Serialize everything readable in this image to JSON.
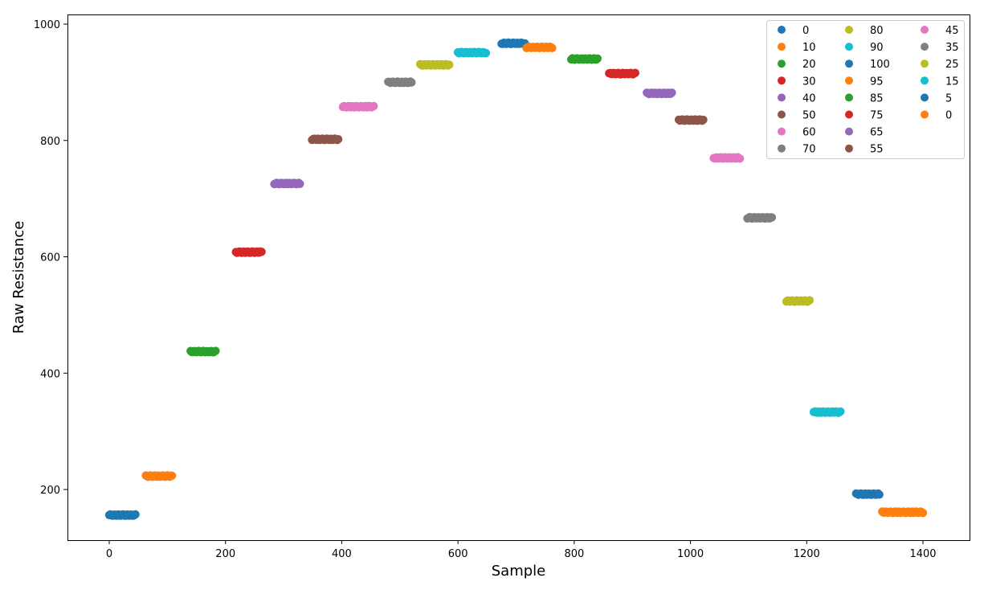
{
  "chart_data": {
    "type": "scatter",
    "title": "",
    "xlabel": "Sample",
    "ylabel": "Raw Resistance",
    "xlim": [
      -70,
      1480
    ],
    "ylim": [
      113,
      1017
    ],
    "xticks": [
      0,
      200,
      400,
      600,
      800,
      1000,
      1200,
      1400
    ],
    "yticks": [
      200,
      400,
      600,
      800,
      1000
    ],
    "grid": false,
    "legend_position": "upper right",
    "legend_columns": 3,
    "series": [
      {
        "name": "0",
        "color": "#1f77b4",
        "x_start": 0,
        "x_end": 45,
        "y": 156
      },
      {
        "name": "10",
        "color": "#ff7f0e",
        "x_start": 63,
        "x_end": 108,
        "y": 223
      },
      {
        "name": "20",
        "color": "#2ca02c",
        "x_start": 140,
        "x_end": 183,
        "y": 437
      },
      {
        "name": "30",
        "color": "#d62728",
        "x_start": 218,
        "x_end": 262,
        "y": 608
      },
      {
        "name": "40",
        "color": "#9467bd",
        "x_start": 284,
        "x_end": 328,
        "y": 726
      },
      {
        "name": "50",
        "color": "#8c564b",
        "x_start": 349,
        "x_end": 394,
        "y": 802
      },
      {
        "name": "60",
        "color": "#e377c2",
        "x_start": 402,
        "x_end": 455,
        "y": 858
      },
      {
        "name": "70",
        "color": "#7f7f7f",
        "x_start": 480,
        "x_end": 520,
        "y": 900
      },
      {
        "name": "80",
        "color": "#bcbd22",
        "x_start": 535,
        "x_end": 585,
        "y": 930
      },
      {
        "name": "90",
        "color": "#17becf",
        "x_start": 600,
        "x_end": 648,
        "y": 951
      },
      {
        "name": "100",
        "color": "#1f77b4",
        "x_start": 675,
        "x_end": 715,
        "y": 967
      },
      {
        "name": "95",
        "color": "#ff7f0e",
        "x_start": 718,
        "x_end": 762,
        "y": 960
      },
      {
        "name": "85",
        "color": "#2ca02c",
        "x_start": 795,
        "x_end": 840,
        "y": 940
      },
      {
        "name": "75",
        "color": "#d62728",
        "x_start": 860,
        "x_end": 905,
        "y": 915
      },
      {
        "name": "65",
        "color": "#9467bd",
        "x_start": 925,
        "x_end": 968,
        "y": 881
      },
      {
        "name": "55",
        "color": "#8c564b",
        "x_start": 980,
        "x_end": 1022,
        "y": 835
      },
      {
        "name": "45",
        "color": "#e377c2",
        "x_start": 1040,
        "x_end": 1085,
        "y": 770
      },
      {
        "name": "35",
        "color": "#7f7f7f",
        "x_start": 1098,
        "x_end": 1140,
        "y": 667
      },
      {
        "name": "25",
        "color": "#bcbd22",
        "x_start": 1165,
        "x_end": 1205,
        "y": 524
      },
      {
        "name": "15",
        "color": "#17becf",
        "x_start": 1212,
        "x_end": 1258,
        "y": 333
      },
      {
        "name": "5",
        "color": "#1f77b4",
        "x_start": 1285,
        "x_end": 1325,
        "y": 192
      },
      {
        "name": "0",
        "color": "#ff7f0e",
        "x_start": 1330,
        "x_end": 1400,
        "y": 161
      }
    ]
  }
}
